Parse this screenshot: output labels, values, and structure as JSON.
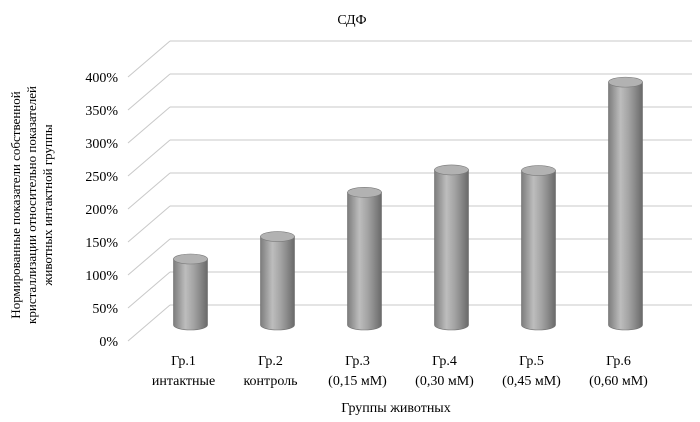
{
  "chart_data": {
    "type": "bar",
    "title": "СДФ",
    "xlabel": "Группы животных",
    "ylabel_lines": [
      "Нормированные показатели собственной",
      "кристаллизации относительно показателей",
      "животных интактной группы"
    ],
    "categories": [
      {
        "line1": "Гр.1",
        "line2": "интактные"
      },
      {
        "line1": "Гр.2",
        "line2": "контроль"
      },
      {
        "line1": "Гр.3",
        "line2": "(0,15 мМ)"
      },
      {
        "line1": "Гр.4",
        "line2": "(0,30 мМ)"
      },
      {
        "line1": "Гр.5",
        "line2": "(0,45 мМ)"
      },
      {
        "line1": "Гр.6",
        "line2": "(0,60 мМ)"
      }
    ],
    "values": [
      100,
      134,
      201,
      235,
      234,
      368
    ],
    "ylim": [
      0,
      400
    ],
    "y_ticks": [
      "0%",
      "50%",
      "100%",
      "150%",
      "200%",
      "250%",
      "300%",
      "350%",
      "400%"
    ],
    "grid": true,
    "legend": "none",
    "bar_color": "#9a9a9a"
  }
}
